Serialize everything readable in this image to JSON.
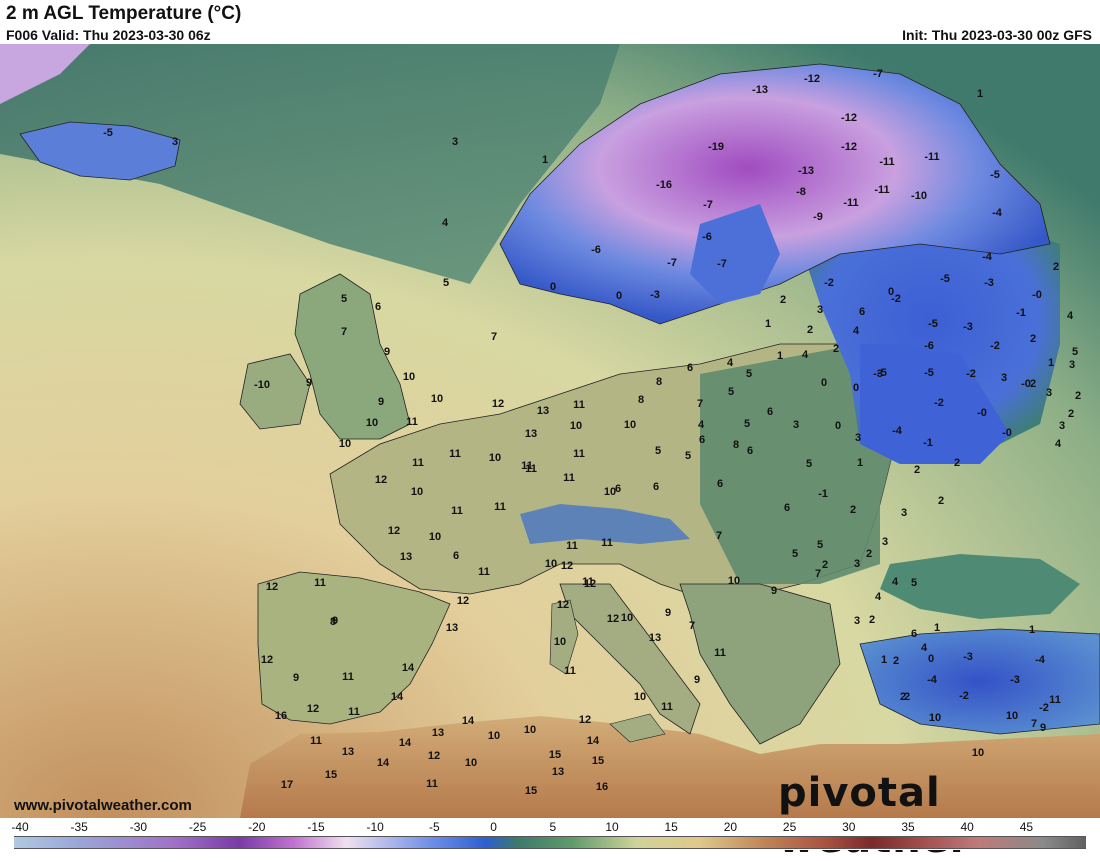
{
  "header": {
    "title": "2 m AGL Temperature (°C)",
    "valid": "F006 Valid: Thu 2023-03-30 06z",
    "init": "Init: Thu 2023-03-30 00z GFS"
  },
  "footer": {
    "website": "www.pivotalweather.com",
    "logo_text": "pivotal weather"
  },
  "colorbar": {
    "ticks": [
      "-40",
      "-35",
      "-30",
      "-25",
      "-20",
      "-15",
      "-10",
      "-5",
      "0",
      "5",
      "10",
      "15",
      "20",
      "25",
      "30",
      "35",
      "40",
      "45"
    ]
  },
  "colors": {
    "ocean_sw": "#c89a6a",
    "ocean_mid": "#e4d2a0",
    "north_atlantic": "#3f7a6a",
    "cold_blue": "#3a5fd0",
    "very_cold": "#b050c0",
    "land_temperate": "#a6b883",
    "africa_warm": "#c89462"
  },
  "labels": [
    {
      "t": "-5"
    },
    {
      "t": "3"
    },
    {
      "t": "3"
    },
    {
      "t": "1"
    },
    {
      "t": "4"
    },
    {
      "t": "5"
    },
    {
      "t": "7"
    },
    {
      "t": "6"
    },
    {
      "t": "5"
    },
    {
      "t": "9"
    },
    {
      "t": "7"
    },
    {
      "t": "-10"
    },
    {
      "t": "9"
    },
    {
      "t": "10"
    },
    {
      "t": "9"
    },
    {
      "t": "10"
    },
    {
      "t": "10"
    },
    {
      "t": "11"
    },
    {
      "t": "10"
    },
    {
      "t": "12"
    },
    {
      "t": "11"
    },
    {
      "t": "13"
    },
    {
      "t": "11"
    },
    {
      "t": "12"
    },
    {
      "t": "13"
    },
    {
      "t": "10"
    },
    {
      "t": "11"
    },
    {
      "t": "11"
    },
    {
      "t": "10"
    },
    {
      "t": "11"
    },
    {
      "t": "10"
    },
    {
      "t": "11"
    },
    {
      "t": "11"
    },
    {
      "t": "12"
    },
    {
      "t": "13"
    },
    {
      "t": "10"
    },
    {
      "t": "6"
    },
    {
      "t": "11"
    },
    {
      "t": "11"
    },
    {
      "t": "11"
    },
    {
      "t": "10"
    },
    {
      "t": "11"
    },
    {
      "t": "12"
    },
    {
      "t": "13"
    },
    {
      "t": "9"
    },
    {
      "t": "8"
    },
    {
      "t": "11"
    },
    {
      "t": "12"
    },
    {
      "t": "12"
    },
    {
      "t": "14"
    },
    {
      "t": "11"
    },
    {
      "t": "9"
    },
    {
      "t": "11"
    },
    {
      "t": "14"
    },
    {
      "t": "12"
    },
    {
      "t": "11"
    },
    {
      "t": "16"
    },
    {
      "t": "13"
    },
    {
      "t": "15"
    },
    {
      "t": "14"
    },
    {
      "t": "14"
    },
    {
      "t": "13"
    },
    {
      "t": "12"
    },
    {
      "t": "10"
    },
    {
      "t": "10"
    },
    {
      "t": "14"
    },
    {
      "t": "10"
    },
    {
      "t": "13"
    },
    {
      "t": "12"
    },
    {
      "t": "14"
    },
    {
      "t": "15"
    },
    {
      "t": "15"
    },
    {
      "t": "17"
    },
    {
      "t": "11"
    },
    {
      "t": "15"
    },
    {
      "t": "16"
    },
    {
      "t": "10"
    },
    {
      "t": "11"
    },
    {
      "t": "12"
    },
    {
      "t": "10"
    },
    {
      "t": "13"
    },
    {
      "t": "11"
    },
    {
      "t": "12"
    },
    {
      "t": "10"
    },
    {
      "t": "11"
    },
    {
      "t": "7"
    },
    {
      "t": "9"
    },
    {
      "t": "11"
    },
    {
      "t": "9"
    },
    {
      "t": "12"
    },
    {
      "t": "8"
    },
    {
      "t": "10"
    },
    {
      "t": "5"
    },
    {
      "t": "6"
    },
    {
      "t": "6"
    },
    {
      "t": "11"
    },
    {
      "t": "10"
    },
    {
      "t": "12"
    },
    {
      "t": "-12"
    },
    {
      "t": "-7"
    },
    {
      "t": "-13"
    },
    {
      "t": "-12"
    },
    {
      "t": "-19"
    },
    {
      "t": "-12"
    },
    {
      "t": "-16"
    },
    {
      "t": "-11"
    },
    {
      "t": "-11"
    },
    {
      "t": "-13"
    },
    {
      "t": "-8"
    },
    {
      "t": "-11"
    },
    {
      "t": "-10"
    },
    {
      "t": "-9"
    },
    {
      "t": "-11"
    },
    {
      "t": "-7"
    },
    {
      "t": "-6"
    },
    {
      "t": "-7"
    },
    {
      "t": "-6"
    },
    {
      "t": "-7"
    },
    {
      "t": "-3"
    },
    {
      "t": "0"
    },
    {
      "t": "0"
    },
    {
      "t": "-2"
    },
    {
      "t": "-5"
    },
    {
      "t": "-4"
    },
    {
      "t": "-5"
    },
    {
      "t": "-4"
    },
    {
      "t": "-3"
    },
    {
      "t": "-3"
    },
    {
      "t": "-0"
    },
    {
      "t": "-1"
    },
    {
      "t": "-5"
    },
    {
      "t": "-6"
    },
    {
      "t": "-3"
    },
    {
      "t": "-2"
    },
    {
      "t": "-5"
    },
    {
      "t": "-5"
    },
    {
      "t": "-2"
    },
    {
      "t": "-0"
    },
    {
      "t": "-2"
    },
    {
      "t": "-4"
    },
    {
      "t": "-1"
    },
    {
      "t": "-0"
    },
    {
      "t": "-0"
    },
    {
      "t": "1"
    },
    {
      "t": "2"
    },
    {
      "t": "4"
    },
    {
      "t": "5"
    },
    {
      "t": "2"
    },
    {
      "t": "2"
    },
    {
      "t": "0"
    },
    {
      "t": "0"
    },
    {
      "t": "3"
    },
    {
      "t": "2"
    },
    {
      "t": "1"
    },
    {
      "t": "6"
    },
    {
      "t": "5"
    },
    {
      "t": "4"
    },
    {
      "t": "6"
    },
    {
      "t": "5"
    },
    {
      "t": "4"
    },
    {
      "t": "7"
    },
    {
      "t": "5"
    },
    {
      "t": "2"
    },
    {
      "t": "3"
    },
    {
      "t": "1"
    },
    {
      "t": "2"
    },
    {
      "t": "8"
    },
    {
      "t": "5"
    },
    {
      "t": "4"
    },
    {
      "t": "3"
    },
    {
      "t": "1"
    },
    {
      "t": "0"
    },
    {
      "t": "7"
    },
    {
      "t": "6"
    },
    {
      "t": "5"
    },
    {
      "t": "6"
    },
    {
      "t": "4"
    },
    {
      "t": "6"
    },
    {
      "t": "0"
    },
    {
      "t": "-2"
    },
    {
      "t": "-1"
    },
    {
      "t": "2"
    },
    {
      "t": "2"
    },
    {
      "t": "4"
    },
    {
      "t": "3"
    },
    {
      "t": "3"
    },
    {
      "t": "1"
    },
    {
      "t": "2"
    },
    {
      "t": "3"
    },
    {
      "t": "3"
    },
    {
      "t": "2"
    },
    {
      "t": "2"
    },
    {
      "t": "2"
    },
    {
      "t": "3"
    },
    {
      "t": "2"
    },
    {
      "t": "3"
    },
    {
      "t": "5"
    },
    {
      "t": "4"
    },
    {
      "t": "2"
    },
    {
      "t": "1"
    },
    {
      "t": "5"
    },
    {
      "t": "5"
    },
    {
      "t": "2"
    },
    {
      "t": "3"
    },
    {
      "t": "3"
    },
    {
      "t": "2"
    },
    {
      "t": "4"
    },
    {
      "t": "6"
    },
    {
      "t": "4"
    },
    {
      "t": "2"
    },
    {
      "t": "1"
    },
    {
      "t": "1"
    },
    {
      "t": "0"
    },
    {
      "t": "-3"
    },
    {
      "t": "-4"
    },
    {
      "t": "-4"
    },
    {
      "t": "-3"
    },
    {
      "t": "-2"
    },
    {
      "t": "-2"
    },
    {
      "t": "2"
    },
    {
      "t": "10"
    },
    {
      "t": "10"
    },
    {
      "t": "7"
    },
    {
      "t": "9"
    },
    {
      "t": "10"
    },
    {
      "t": "11"
    },
    {
      "t": "6"
    },
    {
      "t": "8"
    },
    {
      "t": "6"
    },
    {
      "t": "9"
    },
    {
      "t": "7"
    },
    {
      "t": "10"
    },
    {
      "t": "5"
    },
    {
      "t": "5"
    },
    {
      "t": "7"
    }
  ]
}
